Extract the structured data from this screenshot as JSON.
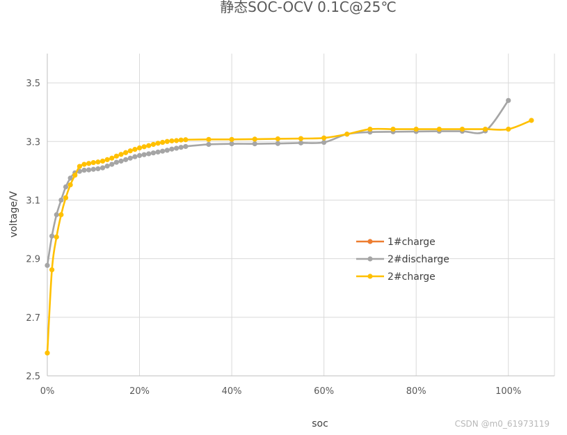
{
  "chart_data": {
    "type": "line",
    "title": "静态SOC-OCV 0.1C@25℃",
    "xlabel": "soc",
    "ylabel": "voltage/V",
    "xlim": [
      0,
      1.1
    ],
    "ylim": [
      2.5,
      3.6
    ],
    "x_ticks": [
      0,
      0.2,
      0.4,
      0.6,
      0.8,
      1.0
    ],
    "x_tick_labels": [
      "0%",
      "20%",
      "40%",
      "60%",
      "80%",
      "100%"
    ],
    "y_ticks": [
      2.5,
      2.7,
      2.9,
      3.1,
      3.3,
      3.5
    ],
    "y_tick_labels": [
      "2.5",
      "2.7",
      "2.9",
      "3.1",
      "3.3",
      "3.5"
    ],
    "grid": true,
    "legend_position": "right-center",
    "series": [
      {
        "name": "1#charge",
        "color": "#ed7d31",
        "x": [],
        "y": []
      },
      {
        "name": "2#discharge",
        "color": "#a5a5a5",
        "x": [
          0,
          0.01,
          0.02,
          0.03,
          0.04,
          0.05,
          0.06,
          0.07,
          0.08,
          0.09,
          0.1,
          0.11,
          0.12,
          0.13,
          0.14,
          0.15,
          0.16,
          0.17,
          0.18,
          0.19,
          0.2,
          0.21,
          0.22,
          0.23,
          0.24,
          0.25,
          0.26,
          0.27,
          0.28,
          0.29,
          0.3,
          0.35,
          0.4,
          0.45,
          0.5,
          0.55,
          0.6,
          0.65,
          0.7,
          0.75,
          0.8,
          0.85,
          0.9,
          0.95,
          1.0
        ],
        "y": [
          2.877,
          2.977,
          3.05,
          3.1,
          3.145,
          3.175,
          3.193,
          3.198,
          3.202,
          3.203,
          3.205,
          3.207,
          3.21,
          3.216,
          3.222,
          3.229,
          3.233,
          3.238,
          3.243,
          3.248,
          3.252,
          3.255,
          3.258,
          3.261,
          3.264,
          3.267,
          3.27,
          3.274,
          3.277,
          3.28,
          3.283,
          3.29,
          3.292,
          3.292,
          3.293,
          3.295,
          3.297,
          3.325,
          3.332,
          3.333,
          3.334,
          3.335,
          3.335,
          3.336,
          3.44
        ]
      },
      {
        "name": "2#charge",
        "color": "#ffc000",
        "x": [
          0,
          0.01,
          0.02,
          0.03,
          0.04,
          0.05,
          0.06,
          0.07,
          0.08,
          0.09,
          0.1,
          0.11,
          0.12,
          0.13,
          0.14,
          0.15,
          0.16,
          0.17,
          0.18,
          0.19,
          0.2,
          0.21,
          0.22,
          0.23,
          0.24,
          0.25,
          0.26,
          0.27,
          0.28,
          0.29,
          0.3,
          0.35,
          0.4,
          0.45,
          0.5,
          0.55,
          0.6,
          0.65,
          0.7,
          0.75,
          0.8,
          0.85,
          0.9,
          0.95,
          1.0,
          1.05
        ],
        "y": [
          2.578,
          2.862,
          2.974,
          3.05,
          3.108,
          3.152,
          3.185,
          3.215,
          3.222,
          3.225,
          3.228,
          3.23,
          3.233,
          3.238,
          3.243,
          3.25,
          3.256,
          3.262,
          3.268,
          3.273,
          3.278,
          3.282,
          3.286,
          3.29,
          3.294,
          3.297,
          3.3,
          3.302,
          3.303,
          3.305,
          3.306,
          3.307,
          3.307,
          3.308,
          3.309,
          3.31,
          3.312,
          3.325,
          3.342,
          3.342,
          3.342,
          3.342,
          3.342,
          3.342,
          3.342,
          3.372
        ]
      }
    ]
  },
  "watermark": "CSDN @m0_61973119"
}
